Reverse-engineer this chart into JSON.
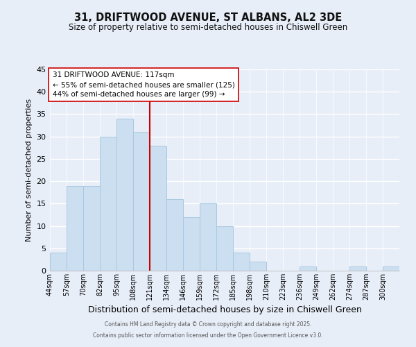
{
  "title": "31, DRIFTWOOD AVENUE, ST ALBANS, AL2 3DE",
  "subtitle": "Size of property relative to semi-detached houses in Chiswell Green",
  "xlabel": "Distribution of semi-detached houses by size in Chiswell Green",
  "ylabel": "Number of semi-detached properties",
  "bin_labels": [
    "44sqm",
    "57sqm",
    "70sqm",
    "82sqm",
    "95sqm",
    "108sqm",
    "121sqm",
    "134sqm",
    "146sqm",
    "159sqm",
    "172sqm",
    "185sqm",
    "198sqm",
    "210sqm",
    "223sqm",
    "236sqm",
    "249sqm",
    "262sqm",
    "274sqm",
    "287sqm",
    "300sqm"
  ],
  "bar_heights": [
    4,
    19,
    19,
    30,
    34,
    31,
    28,
    16,
    12,
    15,
    10,
    4,
    2,
    0,
    0,
    1,
    0,
    0,
    1,
    0,
    1
  ],
  "bar_color": "#ccdff0",
  "bar_edge_color": "#a8c8e0",
  "vline_x": 6,
  "vline_color": "#cc0000",
  "annotation_title": "31 DRIFTWOOD AVENUE: 117sqm",
  "annotation_line1": "← 55% of semi-detached houses are smaller (125)",
  "annotation_line2": "44% of semi-detached houses are larger (99) →",
  "annotation_box_color": "#ffffff",
  "annotation_box_edge": "#cc0000",
  "ylim": [
    0,
    45
  ],
  "yticks": [
    0,
    5,
    10,
    15,
    20,
    25,
    30,
    35,
    40,
    45
  ],
  "footer1": "Contains HM Land Registry data © Crown copyright and database right 2025.",
  "footer2": "Contains public sector information licensed under the Open Government Licence v3.0.",
  "bg_color": "#e8eef8",
  "grid_color": "#ffffff"
}
